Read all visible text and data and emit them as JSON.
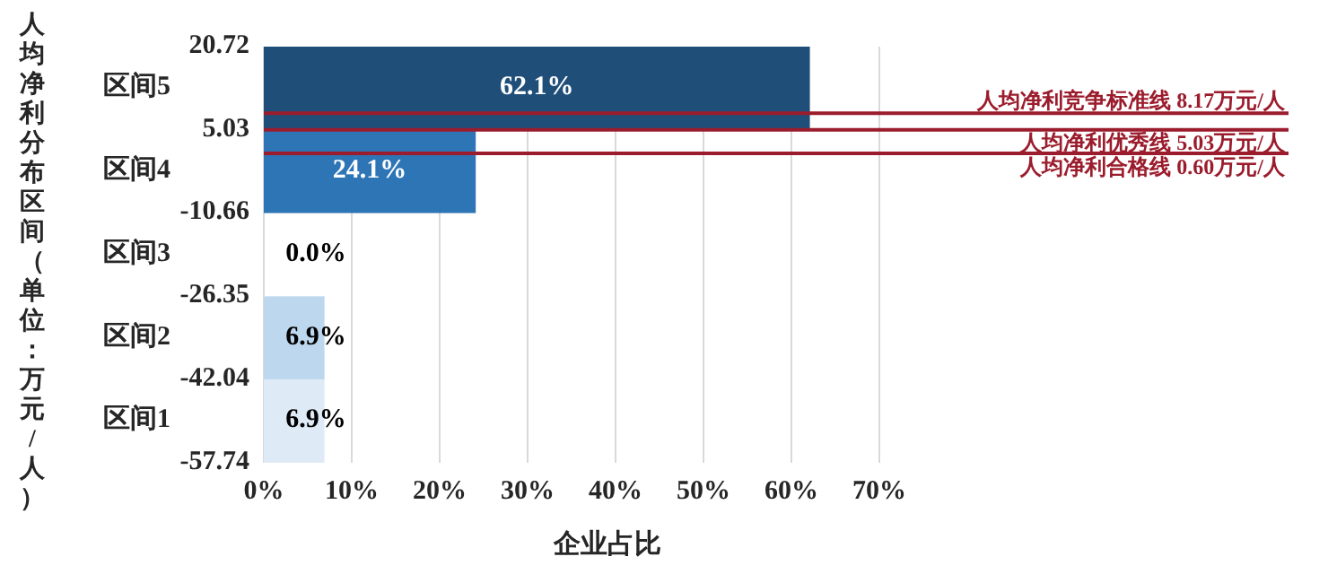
{
  "chart_data": {
    "type": "histogram",
    "orientation": "horizontal",
    "categories": [
      "区间5",
      "区间4",
      "区间3",
      "区间2",
      "区间1"
    ],
    "bins": [
      20.72,
      5.03,
      -10.66,
      -26.35,
      -42.04,
      -57.74
    ],
    "values": [
      62.1,
      24.1,
      0.0,
      6.9,
      6.9
    ],
    "colors": [
      "#1f4e79",
      "#2e75b6",
      "#9dc3e6",
      "#bdd7ee",
      "#deebf7"
    ],
    "value_labels": [
      "62.1%",
      "24.1%",
      "0.0%",
      "6.9%",
      "6.9%"
    ],
    "xlim": [
      0,
      70
    ],
    "xticks": [
      {
        "value": 0,
        "label": "0%"
      },
      {
        "value": 10,
        "label": "10%"
      },
      {
        "value": 20,
        "label": "20%"
      },
      {
        "value": 30,
        "label": "30%"
      },
      {
        "value": 40,
        "label": "40%"
      },
      {
        "value": 50,
        "label": "50%"
      },
      {
        "value": 60,
        "label": "60%"
      },
      {
        "value": 70,
        "label": "70%"
      }
    ],
    "ylim": [
      -57.74,
      20.72
    ],
    "yticks": [
      20.72,
      5.03,
      -10.66,
      -26.35,
      -42.04,
      -57.74
    ],
    "grid": "x",
    "xlabel": "企业占比",
    "ylabel": "人均净利分布区间（单位：万元/人）",
    "ref_lines": [
      {
        "axis": "y",
        "value": 8.17,
        "label": "人均净利竞争标准线  8.17万元/人",
        "color": "#9b1c2c"
      },
      {
        "axis": "y",
        "value": 5.03,
        "label": "人均净利优秀线  5.03万元/人",
        "color": "#9b1c2c"
      },
      {
        "axis": "y",
        "value": 0.6,
        "label": "人均净利合格线  0.60万元/人",
        "color": "#9b1c2c"
      }
    ]
  }
}
